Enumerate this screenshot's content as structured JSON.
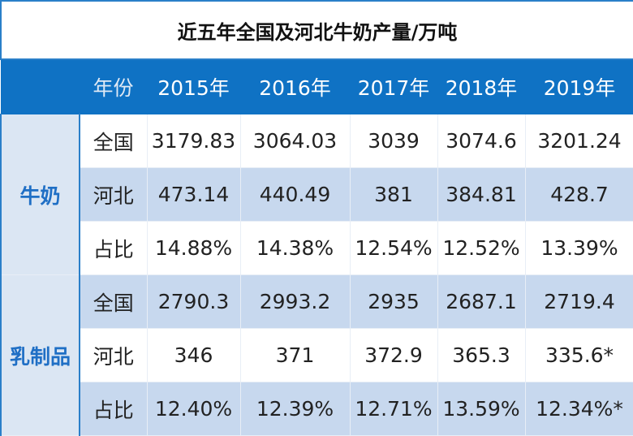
{
  "title": "近五年全国及河北牛奶产量/万吨",
  "table": {
    "header": [
      "年份",
      "2015年",
      "2016年",
      "2017年",
      "2018年",
      "2019年"
    ],
    "groups": [
      {
        "name": "牛奶",
        "rows": [
          [
            "全国",
            "3179.83",
            "3064.03",
            "3039",
            "3074.6",
            "3201.24"
          ],
          [
            "河北",
            "473.14",
            "440.49",
            "381",
            "384.81",
            "428.7"
          ],
          [
            "占比",
            "14.88%",
            "14.38%",
            "12.54%",
            "12.52%",
            "13.39%"
          ]
        ]
      },
      {
        "name": "乳制品",
        "rows": [
          [
            "全国",
            "2790.3",
            "2993.2",
            "2935",
            "2687.1",
            "2719.4"
          ],
          [
            "河北",
            "346",
            "371",
            "372.9",
            "365.3",
            "335.6*"
          ],
          [
            "占比",
            "12.40%",
            "12.39%",
            "12.71%",
            "13.59%",
            "12.34%*"
          ]
        ]
      }
    ]
  }
}
